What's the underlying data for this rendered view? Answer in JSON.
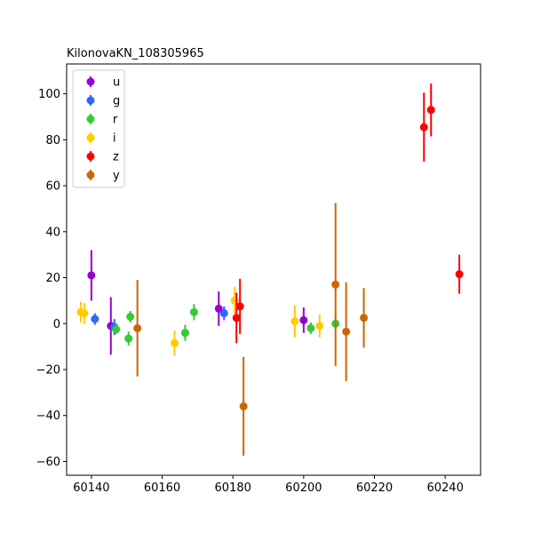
{
  "chart_data": {
    "type": "scatter",
    "title": "KilonovaKN_108305965",
    "xlabel": "",
    "ylabel": "",
    "xlim": [
      60133,
      60250
    ],
    "ylim": [
      -66,
      113
    ],
    "xticks": [
      60140,
      60160,
      60180,
      60200,
      60220,
      60240
    ],
    "yticks": [
      -60,
      -40,
      -20,
      0,
      20,
      40,
      60,
      80,
      100
    ],
    "grid": false,
    "legend": {
      "placement": "top-left"
    },
    "series": [
      {
        "name": "u",
        "color": "#9400D3",
        "points": [
          {
            "x": 60140.0,
            "y": 21.0,
            "err": 11.0
          },
          {
            "x": 60145.5,
            "y": -1.0,
            "err": 12.5
          },
          {
            "x": 60176.0,
            "y": 6.5,
            "err": 7.5
          },
          {
            "x": 60200.0,
            "y": 1.5,
            "err": 5.5
          }
        ]
      },
      {
        "name": "g",
        "color": "#3366FF",
        "points": [
          {
            "x": 60141.0,
            "y": 2.0,
            "err": 2.5
          },
          {
            "x": 60146.5,
            "y": -1.5,
            "err": 3.5
          },
          {
            "x": 60177.5,
            "y": 4.5,
            "err": 3.0
          }
        ]
      },
      {
        "name": "r",
        "color": "#33CC33",
        "points": [
          {
            "x": 60147.0,
            "y": -2.5,
            "err": 2.0
          },
          {
            "x": 60150.5,
            "y": -6.5,
            "err": 3.0
          },
          {
            "x": 60151.0,
            "y": 3.0,
            "err": 2.5
          },
          {
            "x": 60166.5,
            "y": -4.0,
            "err": 3.5
          },
          {
            "x": 60169.0,
            "y": 5.0,
            "err": 3.5
          },
          {
            "x": 60202.0,
            "y": -2.0,
            "err": 2.5
          },
          {
            "x": 60209.0,
            "y": 0.0,
            "err": 2.5
          }
        ]
      },
      {
        "name": "i",
        "color": "#FFCC00",
        "points": [
          {
            "x": 60137.0,
            "y": 5.0,
            "err": 4.5
          },
          {
            "x": 60138.0,
            "y": 4.5,
            "err": 4.5
          },
          {
            "x": 60163.5,
            "y": -8.5,
            "err": 5.5
          },
          {
            "x": 60180.5,
            "y": 10.0,
            "err": 6.0
          },
          {
            "x": 60197.5,
            "y": 1.0,
            "err": 7.0
          },
          {
            "x": 60204.5,
            "y": -1.0,
            "err": 5.0
          }
        ]
      },
      {
        "name": "z",
        "color": "#FF0000",
        "points": [
          {
            "x": 60181.0,
            "y": 2.5,
            "err": 11.0
          },
          {
            "x": 60182.0,
            "y": 7.5,
            "err": 12.0
          },
          {
            "x": 60234.0,
            "y": 85.5,
            "err": 15.0
          },
          {
            "x": 60236.0,
            "y": 93.0,
            "err": 11.5
          },
          {
            "x": 60244.0,
            "y": 21.5,
            "err": 8.5
          }
        ]
      },
      {
        "name": "y",
        "color": "#CC6600",
        "points": [
          {
            "x": 60153.0,
            "y": -2.0,
            "err": 21.0
          },
          {
            "x": 60183.0,
            "y": -36.0,
            "err": 21.5
          },
          {
            "x": 60209.0,
            "y": 17.0,
            "err": 35.5
          },
          {
            "x": 60212.0,
            "y": -3.5,
            "err": 21.5
          },
          {
            "x": 60217.0,
            "y": 2.5,
            "err": 13.0
          }
        ]
      }
    ]
  }
}
